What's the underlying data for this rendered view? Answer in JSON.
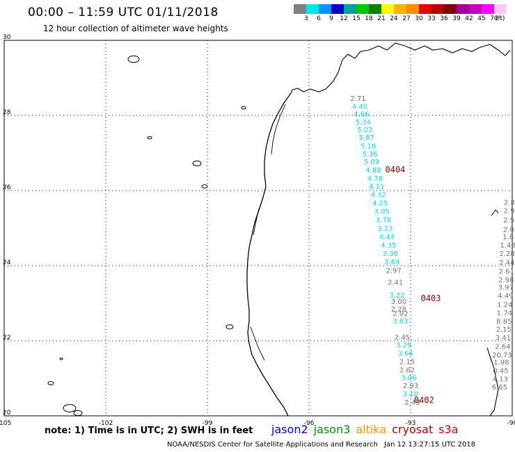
{
  "header": {
    "title": "00:00 – 11:59 UTC 01/11/2018",
    "subtitle": "12 hour collection of altimeter wave heights"
  },
  "legend": {
    "labels": [
      "3",
      "6",
      "9",
      "12",
      "15",
      "18",
      "21",
      "24",
      "27",
      "30",
      "33",
      "36",
      "39",
      "42",
      "45",
      "70"
    ],
    "unit": "(ft)",
    "colors": [
      "#808080",
      "#00e5e5",
      "#0096ff",
      "#0000c8",
      "#00a0a0",
      "#00c800",
      "#008200",
      "#ffff00",
      "#ffb400",
      "#ff8c00",
      "#e60000",
      "#b40000",
      "#820000",
      "#a000a0",
      "#c800c8",
      "#ff00ff",
      "#ffc8ff"
    ]
  },
  "chart_data": {
    "type": "map",
    "xlabel_ticks": [
      "-105",
      "-102",
      "-99",
      "-96",
      "-93",
      "-90"
    ],
    "ylabel_ticks": [
      "20",
      "22",
      "24",
      "26",
      "28",
      "30"
    ],
    "xlim": [
      -105,
      -90
    ],
    "ylim": [
      20,
      30
    ],
    "series": [
      {
        "name": "jason2 track",
        "color": "#00d5e5",
        "points": [
          {
            "lon": -94.5,
            "lat": 28.18,
            "v": "4.40"
          },
          {
            "lon": -94.45,
            "lat": 27.97,
            "v": "4.66"
          },
          {
            "lon": -94.4,
            "lat": 27.76,
            "v": "5.34"
          },
          {
            "lon": -94.35,
            "lat": 27.56,
            "v": "5.03"
          },
          {
            "lon": -94.3,
            "lat": 27.35,
            "v": "5.87"
          },
          {
            "lon": -94.25,
            "lat": 27.12,
            "v": "5.18"
          },
          {
            "lon": -94.2,
            "lat": 26.91,
            "v": "5.36"
          },
          {
            "lon": -94.15,
            "lat": 26.7,
            "v": "5.09"
          },
          {
            "lon": -94.1,
            "lat": 26.48,
            "v": "4.88"
          },
          {
            "lon": -94.05,
            "lat": 26.26,
            "v": "4.78"
          },
          {
            "lon": -94.0,
            "lat": 26.05,
            "v": "4.21"
          },
          {
            "lon": -93.95,
            "lat": 25.82,
            "v": "4.32"
          },
          {
            "lon": -93.9,
            "lat": 25.6,
            "v": "4.25"
          },
          {
            "lon": -93.85,
            "lat": 25.38,
            "v": "3.05"
          },
          {
            "lon": -93.8,
            "lat": 25.16,
            "v": "3.78"
          },
          {
            "lon": -93.75,
            "lat": 24.93,
            "v": "3.13"
          },
          {
            "lon": -93.7,
            "lat": 24.7,
            "v": "4.44"
          },
          {
            "lon": -93.65,
            "lat": 24.48,
            "v": "4.35"
          },
          {
            "lon": -93.6,
            "lat": 24.26,
            "v": "3.36"
          },
          {
            "lon": -93.55,
            "lat": 24.04,
            "v": "3.84"
          },
          {
            "lon": -93.4,
            "lat": 23.15,
            "v": "3.22"
          },
          {
            "lon": -93.3,
            "lat": 22.46,
            "v": "3.63"
          },
          {
            "lon": -93.2,
            "lat": 21.82,
            "v": "3.29"
          },
          {
            "lon": -93.15,
            "lat": 21.6,
            "v": "3.64"
          },
          {
            "lon": -93.05,
            "lat": 20.95,
            "v": "3.06"
          },
          {
            "lon": -93.0,
            "lat": 20.52,
            "v": "3.10"
          }
        ]
      },
      {
        "name": "gray track",
        "color": "#707070",
        "points": [
          {
            "lon": -94.55,
            "lat": 28.39,
            "v": "2.71"
          },
          {
            "lon": -93.5,
            "lat": 23.81,
            "v": "2.97"
          },
          {
            "lon": -93.45,
            "lat": 23.49,
            "v": "2.41"
          },
          {
            "lon": -93.35,
            "lat": 22.98,
            "v": "3.00"
          },
          {
            "lon": -93.35,
            "lat": 22.78,
            "v": "2.28"
          },
          {
            "lon": -93.3,
            "lat": 22.66,
            "v": "2.02"
          },
          {
            "lon": -93.25,
            "lat": 22.03,
            "v": "2.45"
          },
          {
            "lon": -93.1,
            "lat": 21.38,
            "v": "2.15"
          },
          {
            "lon": -93.1,
            "lat": 21.16,
            "v": "2.62"
          },
          {
            "lon": -93.0,
            "lat": 20.74,
            "v": "2.93"
          },
          {
            "lon": -92.95,
            "lat": 20.3,
            "v": "2.49"
          }
        ]
      },
      {
        "name": "east track",
        "color": "#707070",
        "points": [
          {
            "lon": -90.08,
            "lat": 25.62,
            "v": "2.8"
          },
          {
            "lon": -90.09,
            "lat": 25.4,
            "v": "2.9"
          },
          {
            "lon": -90.1,
            "lat": 25.15,
            "v": "2.5"
          },
          {
            "lon": -90.11,
            "lat": 24.9,
            "v": "2.0"
          },
          {
            "lon": -90.12,
            "lat": 24.7,
            "v": "1.8"
          },
          {
            "lon": -90.13,
            "lat": 24.48,
            "v": "1.43"
          },
          {
            "lon": -90.15,
            "lat": 24.26,
            "v": "2.28"
          },
          {
            "lon": -90.16,
            "lat": 24.02,
            "v": "2.44"
          },
          {
            "lon": -90.17,
            "lat": 23.79,
            "v": "2.61"
          },
          {
            "lon": -90.18,
            "lat": 23.56,
            "v": "2.98"
          },
          {
            "lon": -90.19,
            "lat": 23.36,
            "v": "3.97"
          },
          {
            "lon": -90.2,
            "lat": 23.14,
            "v": "4.49"
          },
          {
            "lon": -90.22,
            "lat": 22.9,
            "v": "1.24"
          },
          {
            "lon": -90.23,
            "lat": 22.68,
            "v": "1.74"
          },
          {
            "lon": -90.24,
            "lat": 22.45,
            "v": "8.85"
          },
          {
            "lon": -90.25,
            "lat": 22.24,
            "v": "2.15"
          },
          {
            "lon": -90.27,
            "lat": 22.02,
            "v": "3.41"
          },
          {
            "lon": -90.28,
            "lat": 21.79,
            "v": "2.64"
          },
          {
            "lon": -90.3,
            "lat": 21.56,
            "v": "20.73"
          },
          {
            "lon": -90.32,
            "lat": 21.36,
            "v": "1.98"
          },
          {
            "lon": -90.34,
            "lat": 21.14,
            "v": "0.45"
          },
          {
            "lon": -90.35,
            "lat": 20.92,
            "v": "4.13"
          },
          {
            "lon": -90.37,
            "lat": 20.7,
            "v": "6.65"
          }
        ]
      }
    ],
    "time_labels": [
      {
        "lon": -93.75,
        "lat": 26.48,
        "v": "0404"
      },
      {
        "lon": -92.7,
        "lat": 23.06,
        "v": "0403"
      },
      {
        "lon": -92.9,
        "lat": 20.34,
        "v": "0402"
      }
    ]
  },
  "footer": {
    "note": "note: 1) Time is in UTC; 2) SWH is in feet",
    "satellites": [
      {
        "name": "jason2",
        "color": "#0000d2"
      },
      {
        "name": "jason3",
        "color": "#008c00"
      },
      {
        "name": "altika",
        "color": "#ff8c00"
      },
      {
        "name": "cryosat",
        "color": "#b40000"
      },
      {
        "name": "s3a",
        "color": "#c80000"
      }
    ],
    "credit": "NOAA/NESDIS Center for Satellite Applications and Research",
    "timestamp": "Jan 12 13:27:15 UTC 2018"
  }
}
